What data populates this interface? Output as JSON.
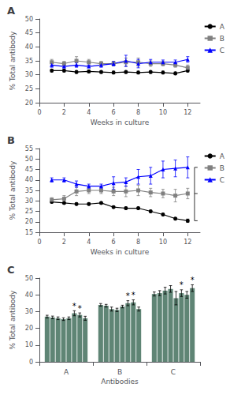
{
  "chart_data": [
    {
      "type": "line",
      "title": "A",
      "xlabel": "Weeks in culture",
      "ylabel": "% Total antibody",
      "x": [
        1,
        2,
        3,
        4,
        5,
        6,
        7,
        8,
        9,
        10,
        11,
        12
      ],
      "series": [
        {
          "name": "A",
          "color": "#000000",
          "marker": "circle",
          "values": [
            31.5,
            31.5,
            31.0,
            31.2,
            31.0,
            30.8,
            31.0,
            30.8,
            31.0,
            30.8,
            30.5,
            31.5
          ],
          "errors": [
            0.5,
            0.5,
            0.5,
            0.5,
            0.5,
            0.5,
            0.5,
            0.5,
            0.5,
            0.5,
            0.5,
            0.5
          ]
        },
        {
          "name": "B",
          "color": "#808080",
          "marker": "square",
          "values": [
            34.5,
            34.0,
            35.0,
            34.5,
            34.0,
            34.0,
            34.5,
            34.5,
            34.0,
            34.0,
            33.5,
            32.5
          ],
          "errors": [
            1.0,
            0.8,
            1.5,
            1.0,
            0.8,
            0.8,
            1.5,
            1.5,
            1.0,
            0.8,
            0.8,
            1.0
          ]
        },
        {
          "name": "C",
          "color": "#0000FF",
          "marker": "triangle",
          "values": [
            33.5,
            33.0,
            33.5,
            33.0,
            33.5,
            34.0,
            35.0,
            34.0,
            34.5,
            34.5,
            34.5,
            35.5
          ],
          "errors": [
            0.8,
            0.5,
            0.8,
            0.5,
            0.8,
            0.8,
            2.0,
            1.5,
            1.0,
            0.8,
            0.8,
            1.0
          ]
        }
      ],
      "xlim": [
        0,
        13
      ],
      "xticks": [
        0,
        2,
        4,
        6,
        8,
        10,
        12
      ],
      "ylim": [
        20,
        50
      ],
      "yticks": [
        20,
        25,
        30,
        35,
        40,
        45,
        50
      ],
      "grid": false,
      "legend": "right"
    },
    {
      "type": "line",
      "title": "B",
      "xlabel": "Weeks in culture",
      "ylabel": "% Total antibody",
      "x": [
        1,
        2,
        3,
        4,
        5,
        6,
        7,
        8,
        9,
        10,
        11,
        12
      ],
      "series": [
        {
          "name": "A",
          "color": "#000000",
          "marker": "circle",
          "values": [
            29.5,
            29.0,
            28.5,
            28.5,
            29.0,
            27.0,
            26.5,
            26.5,
            25.0,
            23.5,
            21.5,
            20.5
          ],
          "errors": [
            0.5,
            0.5,
            0.5,
            0.5,
            0.5,
            0.5,
            0.5,
            0.5,
            0.5,
            0.5,
            0.5,
            0.8
          ]
        },
        {
          "name": "B",
          "color": "#808080",
          "marker": "square",
          "values": [
            30.5,
            31.0,
            34.5,
            35.0,
            35.0,
            34.5,
            34.5,
            35.0,
            34.0,
            33.5,
            32.5,
            33.5
          ],
          "errors": [
            1.0,
            1.5,
            2.0,
            1.5,
            1.5,
            2.0,
            2.5,
            2.5,
            2.0,
            2.0,
            3.0,
            2.5
          ]
        },
        {
          "name": "C",
          "color": "#0000FF",
          "marker": "triangle",
          "values": [
            40.0,
            40.0,
            38.0,
            37.0,
            37.0,
            38.5,
            39.0,
            41.5,
            42.0,
            45.0,
            45.5,
            46.0
          ],
          "errors": [
            1.0,
            1.0,
            1.5,
            1.0,
            1.0,
            3.0,
            2.0,
            3.5,
            4.0,
            4.0,
            4.0,
            5.0
          ]
        }
      ],
      "bracket_values": [
        20.5,
        33.5,
        46.0
      ],
      "xlim": [
        0,
        13
      ],
      "xticks": [
        0,
        2,
        4,
        6,
        8,
        10,
        12
      ],
      "ylim": [
        15,
        55
      ],
      "yticks": [
        15,
        20,
        25,
        30,
        35,
        40,
        45,
        50,
        55
      ],
      "grid": false,
      "legend": "right"
    },
    {
      "type": "bar",
      "title": "C",
      "xlabel": "Antibodies",
      "ylabel": "% Total antibody",
      "categories": [
        "A",
        "B",
        "C"
      ],
      "color": "#5F8575",
      "series": [
        {
          "values": [
            27.0,
            34.0,
            40.5
          ],
          "errors": [
            0.8,
            0.8,
            1.2
          ]
        },
        {
          "values": [
            26.5,
            33.5,
            41.0
          ],
          "errors": [
            0.8,
            0.8,
            1.5
          ]
        },
        {
          "values": [
            26.0,
            31.5,
            42.5
          ],
          "errors": [
            0.8,
            1.2,
            2.0
          ]
        },
        {
          "values": [
            25.5,
            31.0,
            43.5
          ],
          "errors": [
            0.8,
            1.0,
            2.0
          ]
        },
        {
          "values": [
            26.0,
            33.0,
            38.0
          ],
          "errors": [
            0.8,
            0.8,
            4.0
          ]
        },
        {
          "values": [
            29.0,
            35.0,
            41.0
          ],
          "errors": [
            1.5,
            1.5,
            2.0
          ]
        },
        {
          "values": [
            28.0,
            35.5,
            40.0
          ],
          "errors": [
            1.2,
            1.5,
            2.0
          ]
        },
        {
          "values": [
            26.0,
            31.5,
            44.0
          ],
          "errors": [
            1.2,
            1.2,
            2.0
          ]
        }
      ],
      "annotations": [
        {
          "category": "A",
          "bar": 5,
          "text": "*"
        },
        {
          "category": "A",
          "bar": 6,
          "text": "*"
        },
        {
          "category": "B",
          "bar": 5,
          "text": "*"
        },
        {
          "category": "B",
          "bar": 6,
          "text": "*"
        },
        {
          "category": "C",
          "bar": 5,
          "text": "*"
        },
        {
          "category": "C",
          "bar": 7,
          "text": "*"
        }
      ],
      "ylim": [
        0,
        50
      ],
      "yticks": [
        0,
        10,
        20,
        30,
        40,
        50
      ],
      "grid": false
    }
  ]
}
